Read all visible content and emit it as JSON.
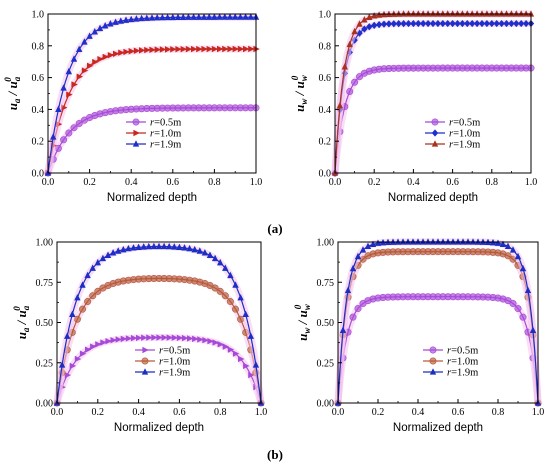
{
  "figure": {
    "label_a": "(a)",
    "label_b": "(b)"
  },
  "colors": {
    "r05": "#a64bd8",
    "r10_top": "#c8281e",
    "r19_top": "#1f2fc9",
    "r10_bottom": "#b65a36",
    "r19_bottom": "#1c2ec4",
    "highlight": "#f4c2ef"
  },
  "chart_data": [
    {
      "id": "a-left",
      "type": "line",
      "xlabel": "Normalized depth",
      "ylabel": {
        "base": "u",
        "num_sub": "a",
        "den_sub": "a",
        "sup": "0"
      },
      "xlim": [
        0,
        1.0
      ],
      "ylim": [
        0,
        1.0
      ],
      "xticks": [
        "0.0",
        "0.2",
        "0.4",
        "0.6",
        "0.8",
        "1.0"
      ],
      "yticks": [
        "0.0",
        "0.2",
        "0.4",
        "0.6",
        "0.8",
        "1.0"
      ],
      "legend_position": "lower-right",
      "series": [
        {
          "name": "r=0.5m",
          "r": "r",
          "suffix": "=0.5m",
          "marker": "circle",
          "color": "#a64bd8",
          "shape": "rise",
          "plateau": 0.41,
          "k": 9.5
        },
        {
          "name": "r=1.0m",
          "r": "r",
          "suffix": "=1.0m",
          "marker": "triangle-right",
          "color": "#c8281e",
          "shape": "rise",
          "plateau": 0.78,
          "k": 10
        },
        {
          "name": "r=1.9m",
          "r": "r",
          "suffix": "=1.9m",
          "marker": "triangle-up",
          "color": "#1f2fc9",
          "shape": "rise",
          "plateau": 0.98,
          "k": 10.5
        }
      ]
    },
    {
      "id": "a-right",
      "type": "line",
      "xlabel": "Normalized depth",
      "ylabel": {
        "base": "u",
        "num_sub": "w",
        "den_sub": "w",
        "sup": "0"
      },
      "xlim": [
        0,
        1.0
      ],
      "ylim": [
        0,
        1.0
      ],
      "xticks": [
        "0.0",
        "0.2",
        "0.4",
        "0.6",
        "0.8",
        "1.0"
      ],
      "yticks": [
        "0.0",
        "0.2",
        "0.4",
        "0.6",
        "0.8",
        "1.0"
      ],
      "legend_position": "lower-right",
      "series": [
        {
          "name": "r=0.5m",
          "r": "r",
          "suffix": "=0.5m",
          "marker": "circle",
          "color": "#a64bd8",
          "shape": "rise",
          "plateau": 0.66,
          "k": 20
        },
        {
          "name": "r=1.0m",
          "r": "r",
          "suffix": "=1.0m",
          "marker": "diamond",
          "color": "#1f2fc9",
          "shape": "rise",
          "plateau": 0.94,
          "k": 22
        },
        {
          "name": "r=1.9m",
          "r": "r",
          "suffix": "=1.9m",
          "marker": "triangle-up",
          "color": "#a8321e",
          "shape": "rise",
          "plateau": 1.0,
          "k": 22
        }
      ]
    },
    {
      "id": "b-left",
      "type": "line",
      "xlabel": "Normalized depth",
      "ylabel": {
        "base": "u",
        "num_sub": "a",
        "den_sub": "a",
        "sup": "0"
      },
      "xlim": [
        0,
        1.0
      ],
      "ylim": [
        0,
        1.0
      ],
      "xticks": [
        "0.0",
        "0.2",
        "0.4",
        "0.6",
        "0.8",
        "1.0"
      ],
      "yticks": [
        "0.00",
        "0.25",
        "0.50",
        "0.75",
        "1.00"
      ],
      "legend_position": "lower-center",
      "series": [
        {
          "name": "r=0.5m",
          "r": "r",
          "suffix": "=0.5m",
          "marker": "triangle-right",
          "color": "#a64bd8",
          "shape": "dome",
          "plateau": 0.41,
          "k": 11
        },
        {
          "name": "r=1.0m",
          "r": "r",
          "suffix": "=1.0m",
          "marker": "circle",
          "color": "#b65a36",
          "shape": "dome",
          "plateau": 0.78,
          "k": 11
        },
        {
          "name": "r=1.9m",
          "r": "r",
          "suffix": "=1.9m",
          "marker": "triangle-up",
          "color": "#1c2ec4",
          "shape": "dome",
          "plateau": 0.98,
          "k": 11
        }
      ]
    },
    {
      "id": "b-right",
      "type": "line",
      "xlabel": "Normalized depth",
      "ylabel": {
        "base": "u",
        "num_sub": "w",
        "den_sub": "w",
        "sup": "0"
      },
      "xlim": [
        0,
        1.0
      ],
      "ylim": [
        0,
        1.0
      ],
      "xticks": [
        "0.0",
        "0.2",
        "0.4",
        "0.6",
        "0.8",
        "1.0"
      ],
      "yticks": [
        "0.00",
        "0.25",
        "0.50",
        "0.75",
        "1.00"
      ],
      "legend_position": "lower-right",
      "series": [
        {
          "name": "r=0.5m",
          "r": "r",
          "suffix": "=0.5m",
          "marker": "circle",
          "color": "#a64bd8",
          "shape": "dome",
          "plateau": 0.66,
          "k": 22
        },
        {
          "name": "r=1.0m",
          "r": "r",
          "suffix": "=1.0m",
          "marker": "circle",
          "color": "#b65a36",
          "shape": "dome",
          "plateau": 0.94,
          "k": 24
        },
        {
          "name": "r=1.9m",
          "r": "r",
          "suffix": "=1.9m",
          "marker": "triangle-up",
          "color": "#1c2ec4",
          "shape": "dome",
          "plateau": 1.0,
          "k": 24
        }
      ]
    }
  ]
}
